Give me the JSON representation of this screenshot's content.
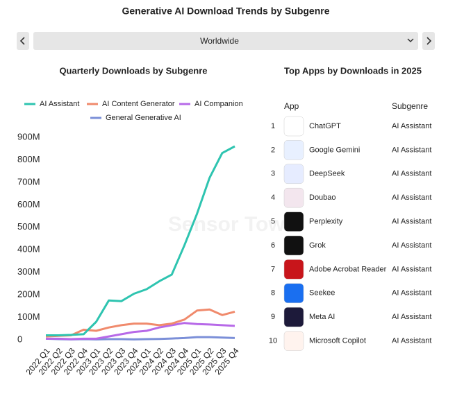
{
  "header": {
    "title": "Generative AI Download Trends by Subgenre",
    "region": "Worldwide"
  },
  "watermark": "Sensor Tower",
  "chart_data": {
    "type": "line",
    "title": "Quarterly Downloads by Subgenre",
    "legend": "top",
    "categories": [
      "2022 Q1",
      "2022 Q2",
      "2022 Q3",
      "2022 Q4",
      "2023 Q1",
      "2023 Q2",
      "2023 Q3",
      "2023 Q4",
      "2024 Q1",
      "2024 Q2",
      "2024 Q3",
      "2024 Q4",
      "2025 Q1",
      "2025 Q2",
      "2025 Q3",
      "2025 Q4"
    ],
    "series": [
      {
        "name": "AI Assistant",
        "color": "#2ec4b0",
        "values": [
          20000000,
          20000000,
          22000000,
          25000000,
          80000000,
          175000000,
          172000000,
          205000000,
          225000000,
          260000000,
          290000000,
          420000000,
          560000000,
          720000000,
          830000000,
          860000000
        ]
      },
      {
        "name": "AI Content Generator",
        "color": "#f08a6c",
        "values": [
          15000000,
          18000000,
          20000000,
          45000000,
          40000000,
          55000000,
          65000000,
          72000000,
          72000000,
          65000000,
          72000000,
          90000000,
          130000000,
          135000000,
          110000000,
          125000000
        ]
      },
      {
        "name": "AI Companion",
        "color": "#b769e8",
        "values": [
          5000000,
          5000000,
          3000000,
          5000000,
          5000000,
          15000000,
          25000000,
          35000000,
          40000000,
          55000000,
          65000000,
          75000000,
          70000000,
          68000000,
          65000000,
          62000000
        ]
      },
      {
        "name": "General Generative AI",
        "color": "#7b8fd8",
        "values": [
          5000000,
          3000000,
          2000000,
          3000000,
          2000000,
          3000000,
          3000000,
          2000000,
          3000000,
          4000000,
          6000000,
          8000000,
          12000000,
          12000000,
          10000000,
          8000000
        ]
      }
    ],
    "ylim": [
      0,
      900000000
    ],
    "yticks": [
      0,
      {
        "value": 100000000,
        "label": "100M"
      },
      {
        "value": 200000000,
        "label": "200M"
      },
      {
        "value": 300000000,
        "label": "300M"
      },
      {
        "value": 400000000,
        "label": "400M"
      },
      {
        "value": 500000000,
        "label": "500M"
      },
      {
        "value": 600000000,
        "label": "600M"
      },
      {
        "value": 700000000,
        "label": "700M"
      },
      {
        "value": 800000000,
        "label": "800M"
      },
      {
        "value": 900000000,
        "label": "900M"
      }
    ],
    "grid": false
  },
  "table": {
    "title": "Top Apps by Downloads in 2025",
    "columns": [
      "App",
      "Subgenre"
    ],
    "rows": [
      {
        "rank": 1,
        "app": "ChatGPT",
        "subgenre": "AI Assistant"
      },
      {
        "rank": 2,
        "app": "Google Gemini",
        "subgenre": "AI Assistant"
      },
      {
        "rank": 3,
        "app": "DeepSeek",
        "subgenre": "AI Assistant"
      },
      {
        "rank": 4,
        "app": "Doubao",
        "subgenre": "AI Assistant"
      },
      {
        "rank": 5,
        "app": "Perplexity",
        "subgenre": "AI Assistant"
      },
      {
        "rank": 6,
        "app": "Grok",
        "subgenre": "AI Assistant"
      },
      {
        "rank": 7,
        "app": "Adobe Acrobat Reader",
        "subgenre": "AI Assistant"
      },
      {
        "rank": 8,
        "app": "Seekee",
        "subgenre": "AI Assistant"
      },
      {
        "rank": 9,
        "app": "Meta AI",
        "subgenre": "AI Assistant"
      },
      {
        "rank": 10,
        "app": "Microsoft Copilot",
        "subgenre": "AI Assistant"
      }
    ]
  }
}
